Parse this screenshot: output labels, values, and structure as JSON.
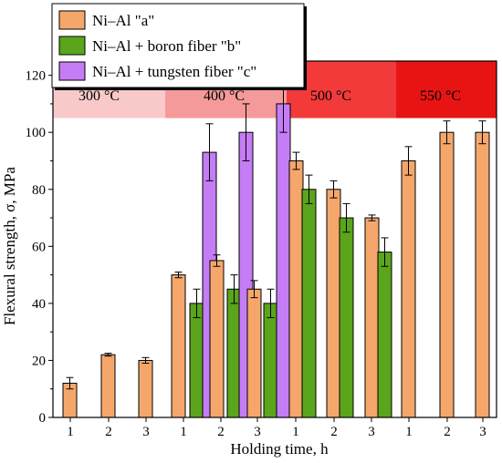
{
  "chart_data": {
    "type": "bar",
    "xlabel": "Holding time, h",
    "ylabel": "Flexural strength, σ, MPa",
    "ylim": [
      0,
      125
    ],
    "yticks": [
      0,
      20,
      40,
      60,
      80,
      100,
      120
    ],
    "grid": false,
    "legend_position": "top-left",
    "temperature_bands": [
      {
        "label": "300 °C",
        "color": "#f9c9c9"
      },
      {
        "label": "400 °C",
        "color": "#f59a9a"
      },
      {
        "label": "500 °C",
        "color": "#f23a3a"
      },
      {
        "label": "550 °C",
        "color": "#e81414"
      }
    ],
    "groups": [
      {
        "band": 0,
        "categories": [
          "1",
          "2",
          "3"
        ]
      },
      {
        "band": 1,
        "categories": [
          "1",
          "2",
          "3"
        ]
      },
      {
        "band": 2,
        "categories": [
          "1",
          "2",
          "3"
        ]
      },
      {
        "band": 3,
        "categories": [
          "1",
          "2",
          "3"
        ]
      }
    ],
    "series": [
      {
        "name": "Ni–Al \"a\"",
        "color": "#f5a76b",
        "values": [
          [
            12,
            22,
            20
          ],
          [
            50,
            55,
            45
          ],
          [
            90,
            80,
            70
          ],
          [
            90,
            100,
            100
          ]
        ],
        "errors": [
          [
            2,
            0.5,
            1
          ],
          [
            1,
            2,
            3
          ],
          [
            3,
            3,
            1
          ],
          [
            5,
            4,
            4
          ]
        ]
      },
      {
        "name": "Ni–Al + boron fiber \"b\"",
        "color": "#5aa51c",
        "values": [
          null,
          [
            40,
            45,
            40
          ],
          [
            80,
            70,
            58
          ],
          null
        ],
        "errors": [
          null,
          [
            5,
            5,
            5
          ],
          [
            5,
            5,
            5
          ],
          null
        ]
      },
      {
        "name": "Ni–Al + tungsten fiber \"c\"",
        "color": "#c57df6",
        "values": [
          null,
          [
            93,
            100,
            110
          ],
          null,
          null
        ],
        "errors": [
          null,
          [
            10,
            10,
            10
          ],
          null,
          null
        ]
      }
    ]
  }
}
